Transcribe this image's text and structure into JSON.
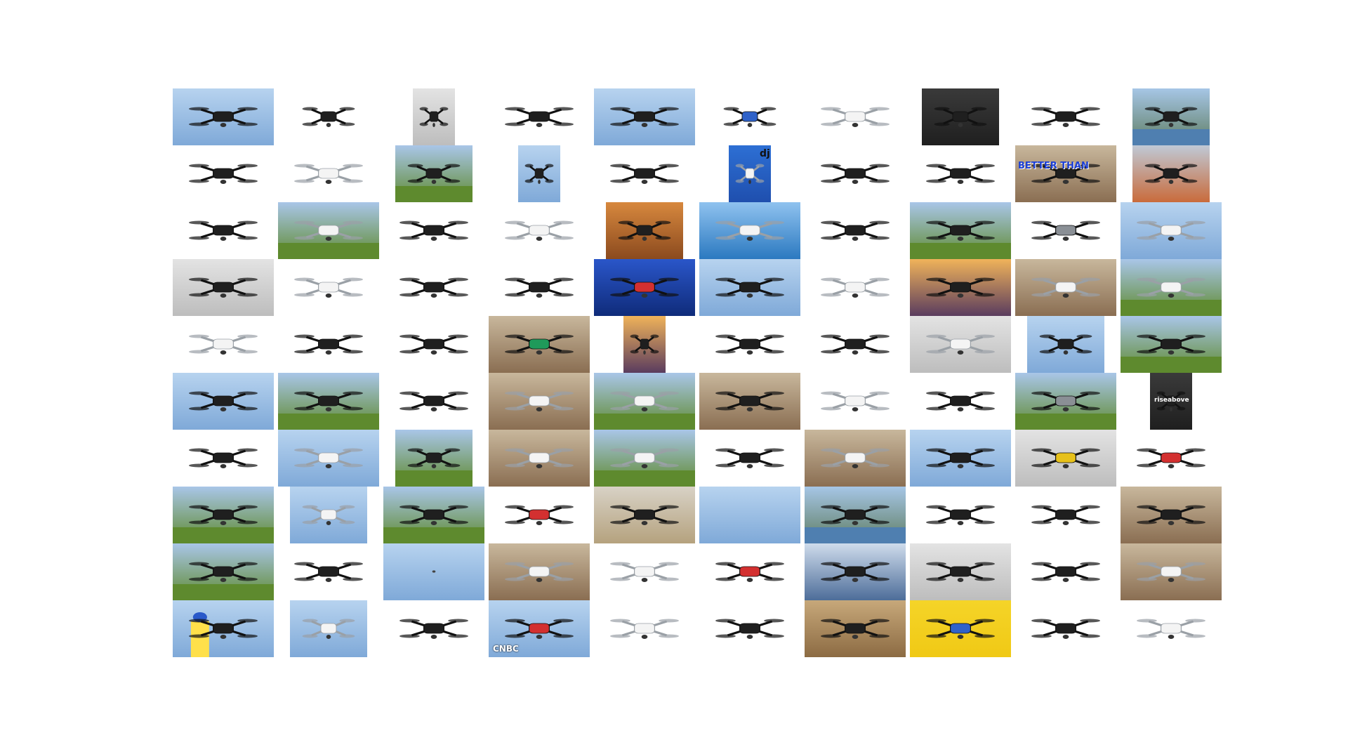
{
  "colors": {
    "page_bg": "#ffffff",
    "sky": "#9ec3ea",
    "white_bg": "#ffffff",
    "grass": "#6f8f3d",
    "dark_drone": "#222222",
    "white_drone": "#f2f2f2",
    "accent_red": "#d33030",
    "accent_yellow": "#f3d21a",
    "deep_blue": "#1f3fb7"
  },
  "overlays": {
    "better_than": "BETTER THAN",
    "dji_logo": "dji",
    "rise_above": "riseabove",
    "cnbc": "CNBC"
  },
  "tiles": [
    "blue-sky-drone",
    "quad-top-view",
    "drone-closeup-dark",
    "quad-white-bg",
    "sky-hexacopter",
    "blue-white-fixed-wing",
    "hand-white-drone",
    "drone-on-table",
    "white-quad-small",
    "lake-boat-drone",
    "drone-collection",
    "white-quad-angle",
    "tree-field-quad",
    "sky-red-drone",
    "black-quad-white",
    "dji-box-blue",
    "mini-quad-controller",
    "silhouette-quad",
    "better-than-man",
    "court-orange-drone",
    "foldable-black-kit",
    "grass-white-drone",
    "mavic-air-dark",
    "phantom-white",
    "drone-orange-wall",
    "phantom-sea",
    "stickers-quad",
    "rice-field-drones",
    "mavic-gray",
    "delivery-drone-sky",
    "hazy-sky-drone",
    "tello-white",
    "solo-3dr",
    "mini-black-quad",
    "red-parcel-sky",
    "sky-strip-quad",
    "phantom-white-2",
    "sunset-hand-drone",
    "unbox-phantom",
    "lake-white-drone",
    "toy-white-red",
    "inspire-black",
    "parts-kit",
    "hand-green-drone",
    "sunrise-drone",
    "hexacopter-gimbal",
    "caged-drone",
    "room-gray-drone",
    "field-building",
    "case-grass-drone",
    "mavic-pair-sky",
    "inspire-autumn",
    "matrice-black",
    "phantom-parts",
    "hand-phantom",
    "sports-car-drones",
    "phantom-small",
    "solo-black",
    "mavic-desert",
    "rise-above-poster",
    "guarded-quad",
    "drone-parcel",
    "racing-bike",
    "phantom-controller",
    "phantom-flowers",
    "foldable-black",
    "assembly-phantom",
    "blue-mavic-sky",
    "yellow-quad",
    "red-black-quad",
    "spray-drone-trees",
    "white-green-quad",
    "grass-flight",
    "orange-toy-quad",
    "beach-hexacopter",
    "plain-sky",
    "lake-hover",
    "white-toy-quad",
    "ag-drone-white",
    "car-drone-room",
    "valley-phantom",
    "black-white-x",
    "sky-dot",
    "phantom-controller-2",
    "white-red-toy",
    "red-foldable",
    "cloud-drone",
    "gray-sky-drone",
    "wheel-quad",
    "doorway-phantom",
    "worker-controller",
    "phantom-grid",
    "line-quad",
    "cnbc-red-drone",
    "white-green-big",
    "mini-controller",
    "wood-deck-drone",
    "umbrella-drone",
    "ground-robot-drone",
    "tiny-white-quad"
  ]
}
